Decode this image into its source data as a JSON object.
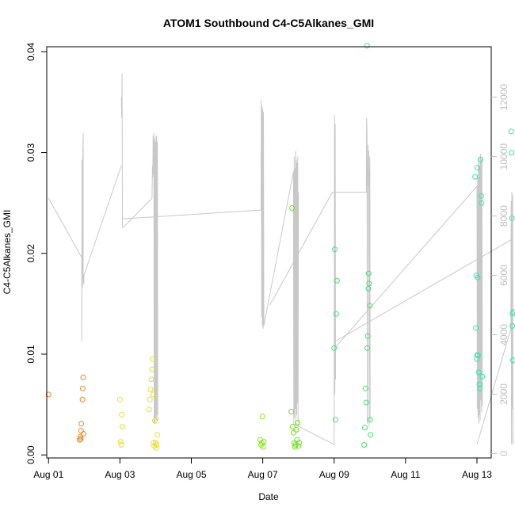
{
  "chart_data": {
    "type": "scatter",
    "title": "ATOM1 Southbound C4-C5Alkanes_GMI",
    "xlabel": "Date",
    "ylabel": "C4-C5Alkanes_GMI",
    "xlim": [
      -0.05,
      12.4
    ],
    "ylim": [
      -0.0003,
      0.0405
    ],
    "x_ticks": [
      0,
      2,
      4,
      6,
      8,
      10,
      12
    ],
    "x_tick_labels": [
      "Aug 01",
      "Aug 03",
      "Aug 05",
      "Aug 07",
      "Aug 09",
      "Aug 11",
      "Aug 13"
    ],
    "y_ticks": [
      0.0,
      0.01,
      0.02,
      0.03,
      0.04
    ],
    "y_tick_labels": [
      "0.00",
      "0.01",
      "0.02",
      "0.03",
      "0.04"
    ],
    "y2_ticks": [
      0,
      2000,
      4000,
      6000,
      8000,
      10000,
      12000
    ],
    "y2_tick_labels": [
      "0",
      "2000",
      "4000",
      "6000",
      "8000",
      "10000",
      "12000"
    ],
    "y2_range": [
      -150,
      13700
    ],
    "grid": false,
    "colors": {
      "line": "#c8c8c8",
      "axis": "#000000",
      "right_axis": "#bdbdbd"
    },
    "points": [
      {
        "x": 0.0,
        "y": 0.006,
        "color": "#f08020"
      },
      {
        "x": 0.87,
        "y": 0.0015,
        "color": "#f08020"
      },
      {
        "x": 0.89,
        "y": 0.0018,
        "color": "#f08020"
      },
      {
        "x": 0.91,
        "y": 0.0024,
        "color": "#f08020"
      },
      {
        "x": 0.92,
        "y": 0.0031,
        "color": "#f08020"
      },
      {
        "x": 0.95,
        "y": 0.0055,
        "color": "#f08020"
      },
      {
        "x": 0.96,
        "y": 0.0066,
        "color": "#f08020"
      },
      {
        "x": 0.97,
        "y": 0.0077,
        "color": "#f08020"
      },
      {
        "x": 0.98,
        "y": 0.0021,
        "color": "#f08020"
      },
      {
        "x": 0.9,
        "y": 0.0016,
        "color": "#f08020"
      },
      {
        "x": 2.0,
        "y": 0.0055,
        "color": "#e6df30"
      },
      {
        "x": 2.02,
        "y": 0.0013,
        "color": "#e6df30"
      },
      {
        "x": 2.04,
        "y": 0.001,
        "color": "#e6df30"
      },
      {
        "x": 2.05,
        "y": 0.004,
        "color": "#e6df30"
      },
      {
        "x": 2.07,
        "y": 0.0028,
        "color": "#e6df30"
      },
      {
        "x": 2.82,
        "y": 0.0045,
        "color": "#e6df30"
      },
      {
        "x": 2.84,
        "y": 0.0055,
        "color": "#e6df30"
      },
      {
        "x": 2.86,
        "y": 0.0065,
        "color": "#e6df30"
      },
      {
        "x": 2.88,
        "y": 0.0075,
        "color": "#e6df30"
      },
      {
        "x": 2.9,
        "y": 0.0085,
        "color": "#e6df30"
      },
      {
        "x": 2.91,
        "y": 0.0095,
        "color": "#e6df30"
      },
      {
        "x": 2.93,
        "y": 0.006,
        "color": "#e6df30"
      },
      {
        "x": 2.94,
        "y": 0.0012,
        "color": "#e6df30"
      },
      {
        "x": 2.96,
        "y": 0.0009,
        "color": "#e6df30"
      },
      {
        "x": 2.98,
        "y": 0.0034,
        "color": "#e6df30"
      },
      {
        "x": 3.0,
        "y": 0.0012,
        "color": "#e6df30"
      },
      {
        "x": 3.01,
        "y": 0.0007,
        "color": "#e6df30"
      },
      {
        "x": 3.03,
        "y": 0.001,
        "color": "#e6df30"
      },
      {
        "x": 3.05,
        "y": 0.002,
        "color": "#e6df30"
      },
      {
        "x": 5.93,
        "y": 0.0015,
        "color": "#88e620"
      },
      {
        "x": 5.95,
        "y": 0.001,
        "color": "#88e620"
      },
      {
        "x": 5.97,
        "y": 0.0012,
        "color": "#88e620"
      },
      {
        "x": 5.99,
        "y": 0.0038,
        "color": "#88e620"
      },
      {
        "x": 6.01,
        "y": 0.0008,
        "color": "#88e620"
      },
      {
        "x": 6.03,
        "y": 0.0013,
        "color": "#88e620"
      },
      {
        "x": 6.8,
        "y": 0.0043,
        "color": "#6fe020"
      },
      {
        "x": 6.82,
        "y": 0.0245,
        "color": "#6fe020"
      },
      {
        "x": 6.84,
        "y": 0.0028,
        "color": "#6fe020"
      },
      {
        "x": 6.86,
        "y": 0.0022,
        "color": "#6fe020"
      },
      {
        "x": 6.88,
        "y": 0.0012,
        "color": "#6fe020"
      },
      {
        "x": 6.9,
        "y": 0.0008,
        "color": "#6fe020"
      },
      {
        "x": 6.92,
        "y": 0.001,
        "color": "#6fe020"
      },
      {
        "x": 6.94,
        "y": 0.0025,
        "color": "#6fe020"
      },
      {
        "x": 6.96,
        "y": 0.0015,
        "color": "#6fe020"
      },
      {
        "x": 6.98,
        "y": 0.0032,
        "color": "#6fe020"
      },
      {
        "x": 7.0,
        "y": 0.0009,
        "color": "#6fe020"
      },
      {
        "x": 7.02,
        "y": 0.0012,
        "color": "#6fe020"
      },
      {
        "x": 8.0,
        "y": 0.0106,
        "color": "#40e070"
      },
      {
        "x": 8.02,
        "y": 0.0204,
        "color": "#40e070"
      },
      {
        "x": 8.04,
        "y": 0.0035,
        "color": "#40e070"
      },
      {
        "x": 8.06,
        "y": 0.014,
        "color": "#40e070"
      },
      {
        "x": 8.08,
        "y": 0.0173,
        "color": "#40e070"
      },
      {
        "x": 8.84,
        "y": 0.001,
        "color": "#40e070"
      },
      {
        "x": 8.86,
        "y": 0.0027,
        "color": "#40e070"
      },
      {
        "x": 8.88,
        "y": 0.0066,
        "color": "#40e070"
      },
      {
        "x": 8.9,
        "y": 0.0052,
        "color": "#40e070"
      },
      {
        "x": 8.92,
        "y": 0.0406,
        "color": "#40e070"
      },
      {
        "x": 8.93,
        "y": 0.0106,
        "color": "#40e070"
      },
      {
        "x": 8.94,
        "y": 0.0118,
        "color": "#40e070"
      },
      {
        "x": 8.96,
        "y": 0.0165,
        "color": "#40e070"
      },
      {
        "x": 8.97,
        "y": 0.018,
        "color": "#40e070"
      },
      {
        "x": 8.98,
        "y": 0.017,
        "color": "#40e070"
      },
      {
        "x": 9.0,
        "y": 0.0148,
        "color": "#40e070"
      },
      {
        "x": 9.01,
        "y": 0.0035,
        "color": "#40e070"
      },
      {
        "x": 9.02,
        "y": 0.002,
        "color": "#40e070"
      },
      {
        "x": 11.95,
        "y": 0.0276,
        "color": "#30e8b0"
      },
      {
        "x": 11.97,
        "y": 0.0126,
        "color": "#30e8b0"
      },
      {
        "x": 11.98,
        "y": 0.0178,
        "color": "#30e8b0"
      },
      {
        "x": 12.0,
        "y": 0.0095,
        "color": "#30e8b0"
      },
      {
        "x": 12.01,
        "y": 0.0285,
        "color": "#30e8b0"
      },
      {
        "x": 12.03,
        "y": 0.0099,
        "color": "#30e8b0"
      },
      {
        "x": 12.05,
        "y": 0.0082,
        "color": "#30e8b0"
      },
      {
        "x": 12.07,
        "y": 0.007,
        "color": "#30e8b0"
      },
      {
        "x": 12.08,
        "y": 0.0066,
        "color": "#30e8b0"
      },
      {
        "x": 12.1,
        "y": 0.0293,
        "color": "#30e8b0"
      },
      {
        "x": 12.12,
        "y": 0.0257,
        "color": "#30e8b0"
      },
      {
        "x": 12.13,
        "y": 0.025,
        "color": "#30e8b0"
      },
      {
        "x": 12.15,
        "y": 0.0078,
        "color": "#30e8b0"
      },
      {
        "x": 12.0,
        "y": 0.0099,
        "color": "#30e8b0"
      },
      {
        "x": 12.02,
        "y": 0.0176,
        "color": "#30e8b0"
      },
      {
        "x": 12.96,
        "y": 0.0321,
        "color": "#30e8b0"
      },
      {
        "x": 12.97,
        "y": 0.03,
        "color": "#30e8b0"
      },
      {
        "x": 12.98,
        "y": 0.0235,
        "color": "#30e8b0"
      },
      {
        "x": 12.99,
        "y": 0.0128,
        "color": "#30e8b0"
      },
      {
        "x": 13.0,
        "y": 0.014,
        "color": "#30e8b0"
      },
      {
        "x": 13.01,
        "y": 0.0094,
        "color": "#30e8b0"
      },
      {
        "x": 13.02,
        "y": 0.0142,
        "color": "#30e8b0"
      }
    ],
    "line_segments": [
      {
        "x": [
          0.0,
          0.93,
          0.93,
          0.94,
          0.95,
          0.95,
          0.96,
          0.97,
          0.97,
          0.98,
          0.99,
          0.99,
          2.04
        ],
        "y": [
          8600,
          6600,
          3800,
          9900,
          6200,
          5600,
          10100,
          10800,
          6000,
          5800,
          5700,
          6000,
          9700
        ]
      },
      {
        "x": [
          2.04,
          2.05,
          2.06,
          2.07,
          2.08,
          2.9,
          2.91,
          2.92,
          2.93,
          2.94
        ],
        "y": [
          12000,
          11300,
          12800,
          7700,
          7600,
          8600,
          9700,
          9300,
          10700,
          10200
        ]
      },
      {
        "x": [
          2.94,
          2.95,
          2.96,
          2.97,
          2.98,
          2.99,
          3.0,
          3.01,
          3.02,
          3.03,
          3.04,
          3.05,
          3.06
        ],
        "y": [
          9400,
          10800,
          1000,
          10600,
          1000,
          10500,
          1200,
          10700,
          1100,
          10700,
          1300,
          10500,
          1100
        ]
      },
      {
        "x": [
          2.06,
          5.95,
          5.96,
          5.97,
          5.98,
          5.99,
          6.0,
          6.01,
          6.02,
          6.03
        ],
        "y": [
          7900,
          8200,
          11900,
          4600,
          11700,
          4300,
          11600,
          4200,
          11500,
          4300
        ]
      },
      {
        "x": [
          6.03,
          6.86,
          6.87,
          6.88,
          6.89,
          6.9,
          6.91,
          6.92,
          6.93,
          6.94,
          6.95,
          6.96,
          6.97,
          6.98,
          6.99,
          7.0
        ],
        "y": [
          4300,
          9500,
          1000,
          10000,
          1200,
          9600,
          1500,
          10200,
          1000,
          9900,
          1300,
          9800,
          1700,
          10000,
          900,
          8800
        ]
      },
      {
        "x": [
          6.86,
          8.0,
          8.01,
          8.02,
          8.03,
          8.04
        ],
        "y": [
          1000,
          300,
          11400,
          2000,
          11100,
          2500
        ]
      },
      {
        "x": [
          6.2,
          7.95,
          8.9,
          8.91,
          8.92,
          8.93,
          8.94,
          8.95,
          8.96,
          8.97,
          8.98,
          8.99,
          9.0,
          9.01
        ],
        "y": [
          5000,
          8800,
          8800,
          11300,
          10800,
          1000,
          9200,
          10400,
          9000,
          10200,
          900,
          9100,
          10000,
          1100
        ]
      },
      {
        "x": [
          8.02,
          8.05,
          12.0,
          12.01,
          12.02,
          12.03,
          12.04,
          12.05,
          12.06,
          12.07,
          12.08,
          12.09,
          12.1,
          12.11,
          12.12,
          12.13,
          12.14,
          12.15
        ],
        "y": [
          3200,
          3600,
          9000,
          1500,
          9300,
          1200,
          9800,
          1000,
          10000,
          1300,
          9700,
          1100,
          10100,
          1800,
          9900,
          1400,
          10000,
          1600
        ]
      },
      {
        "x": [
          8.06,
          12.96,
          12.97,
          12.98,
          12.99,
          13.0,
          13.01
        ],
        "y": [
          3800,
          7200,
          300,
          8800,
          1500,
          8700,
          300
        ]
      },
      {
        "x": [
          12.0,
          12.95,
          12.96,
          12.97,
          12.98,
          12.99,
          13.0
        ],
        "y": [
          300,
          4200,
          8500,
          400,
          8800,
          3700,
          8700
        ]
      }
    ]
  }
}
